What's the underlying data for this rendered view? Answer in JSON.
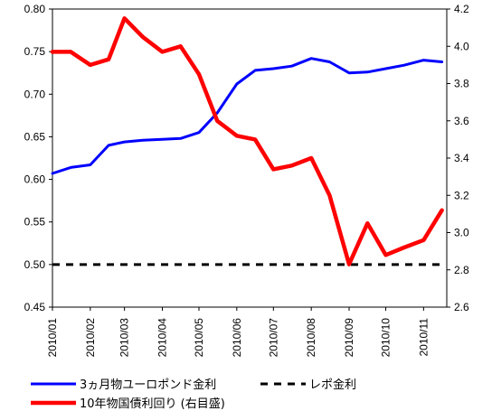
{
  "chart_data": {
    "type": "line",
    "x": [
      "2010/01/01",
      "2010/01/16",
      "2010/02/01",
      "2010/02/16",
      "2010/03/01",
      "2010/03/16",
      "2010/04/01",
      "2010/04/16",
      "2010/05/01",
      "2010/05/16",
      "2010/06/01",
      "2010/06/16",
      "2010/07/01",
      "2010/07/16",
      "2010/08/01",
      "2010/08/16",
      "2010/09/01",
      "2010/09/16",
      "2010/10/01",
      "2010/10/16",
      "2010/11/01",
      "2010/11/16"
    ],
    "x_tick_labels": [
      "2010/01",
      "2010/02",
      "2010/03",
      "2010/04",
      "2010/05",
      "2010/06",
      "2010/07",
      "2010/08",
      "2010/09",
      "2010/10",
      "2010/11"
    ],
    "left_axis": {
      "ylim": [
        0.45,
        0.8
      ],
      "ticks": [
        "0.45",
        "0.50",
        "0.55",
        "0.60",
        "0.65",
        "0.70",
        "0.75",
        "0.80"
      ]
    },
    "right_axis": {
      "ylim": [
        2.6,
        4.2
      ],
      "ticks": [
        "2.6",
        "2.8",
        "3.0",
        "3.2",
        "3.4",
        "3.6",
        "3.8",
        "4.0",
        "4.2"
      ]
    },
    "series": [
      {
        "name": "3ヵ月物ユーロポンド金利",
        "axis": "left",
        "color": "#0000ff",
        "style": "solid",
        "values": [
          0.607,
          0.614,
          0.617,
          0.64,
          0.644,
          0.646,
          0.647,
          0.648,
          0.655,
          0.678,
          0.712,
          0.728,
          0.73,
          0.733,
          0.742,
          0.738,
          0.725,
          0.726,
          0.73,
          0.734,
          0.74,
          0.738
        ]
      },
      {
        "name": "レポ金利",
        "axis": "left",
        "color": "#000000",
        "style": "dashed",
        "values": [
          0.5,
          0.5,
          0.5,
          0.5,
          0.5,
          0.5,
          0.5,
          0.5,
          0.5,
          0.5,
          0.5,
          0.5,
          0.5,
          0.5,
          0.5,
          0.5,
          0.5,
          0.5,
          0.5,
          0.5,
          0.5,
          0.5
        ]
      },
      {
        "name": "10年物国債利回り (右目盛)",
        "axis": "right",
        "color": "#ff0000",
        "style": "solid",
        "values": [
          3.97,
          3.97,
          3.9,
          3.93,
          4.15,
          4.05,
          3.97,
          4.0,
          3.85,
          3.6,
          3.52,
          3.5,
          3.34,
          3.36,
          3.4,
          3.2,
          2.83,
          3.05,
          2.88,
          2.92,
          2.96,
          3.12
        ]
      }
    ],
    "legend": "bottom"
  }
}
